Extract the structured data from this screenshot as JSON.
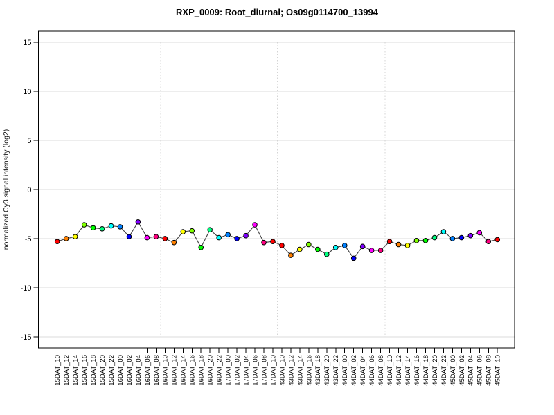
{
  "page": {
    "background": "#ffffff"
  },
  "chart_data": {
    "type": "line",
    "title": "RXP_0009: Root_diurnal; Os09g0114700_13994",
    "ylabel": "normalized Cy3 signal intensity (log2)",
    "xlabel": "",
    "ylim": [
      -16.13,
      16.13
    ],
    "yticks": [
      -15,
      -10,
      -5,
      0,
      5,
      10,
      15
    ],
    "legend_position": "none",
    "grid": {
      "horizontal_style": "solid",
      "horizontal_color": "#dbdbdb",
      "vertical_style": "dotted",
      "vertical_color": "#d4d4d4",
      "vertical_separators_after_index": [
        11,
        24,
        36
      ]
    },
    "line_color": "#3f3f3f",
    "point_stroke_color": "#000000",
    "hour_colors": {
      "00": "#0080FF",
      "02": "#0000FF",
      "04": "#8000FF",
      "06": "#FF00FF",
      "08": "#FF0080",
      "10": "#FF0000",
      "12": "#FF8000",
      "14": "#FFFF00",
      "16": "#80FF00",
      "18": "#00FF00",
      "20": "#00FF80",
      "22": "#00FFFF"
    },
    "categories": [
      "15DAT_10",
      "15DAT_12",
      "15DAT_14",
      "15DAT_16",
      "15DAT_18",
      "15DAT_20",
      "15DAT_22",
      "16DAT_00",
      "16DAT_02",
      "16DAT_04",
      "16DAT_06",
      "16DAT_08",
      "16DAT_10",
      "16DAT_12",
      "16DAT_14",
      "16DAT_16",
      "16DAT_18",
      "16DAT_20",
      "16DAT_22",
      "17DAT_00",
      "17DAT_02",
      "17DAT_04",
      "17DAT_06",
      "17DAT_08",
      "17DAT_10",
      "43DAT_10",
      "43DAT_12",
      "43DAT_14",
      "43DAT_16",
      "43DAT_18",
      "43DAT_20",
      "43DAT_22",
      "44DAT_00",
      "44DAT_02",
      "44DAT_04",
      "44DAT_06",
      "44DAT_08",
      "44DAT_10",
      "44DAT_12",
      "44DAT_14",
      "44DAT_16",
      "44DAT_18",
      "44DAT_20",
      "44DAT_22",
      "45DAT_00",
      "45DAT_02",
      "45DAT_04",
      "45DAT_06",
      "45DAT_08",
      "45DAT_10"
    ],
    "values": [
      -5.3,
      -5.0,
      -4.8,
      -3.6,
      -3.9,
      -4.0,
      -3.7,
      -3.8,
      -4.8,
      -3.3,
      -4.9,
      -4.8,
      -5.0,
      -5.4,
      -4.3,
      -4.2,
      -5.9,
      -4.1,
      -4.9,
      -4.6,
      -5.0,
      -4.7,
      -3.6,
      -5.4,
      -5.3,
      -5.7,
      -6.7,
      -6.1,
      -5.6,
      -6.1,
      -6.6,
      -5.9,
      -5.7,
      -7.0,
      -5.8,
      -6.2,
      -6.2,
      -5.3,
      -5.6,
      -5.7,
      -5.2,
      -5.2,
      -4.9,
      -4.3,
      -5.0,
      -4.9,
      -4.7,
      -4.4,
      -5.3,
      -5.1
    ]
  }
}
